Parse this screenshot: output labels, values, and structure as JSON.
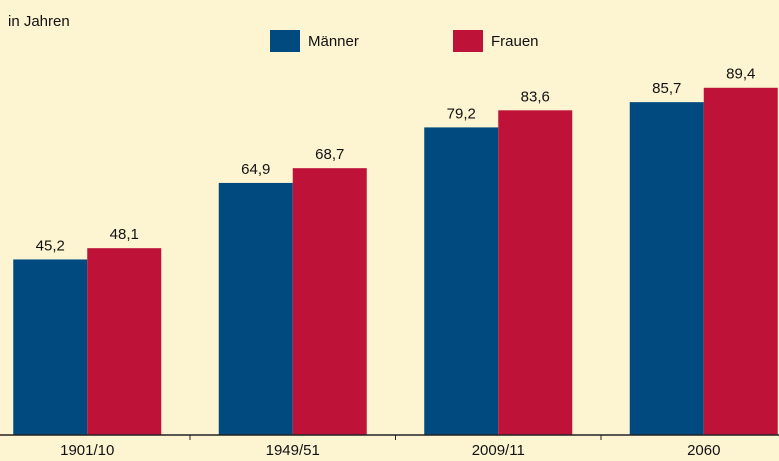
{
  "chart_data": {
    "type": "bar",
    "subtitle": "in Jahren",
    "categories": [
      "1901/10",
      "1949/51",
      "2009/11",
      "2060"
    ],
    "series": [
      {
        "name": "Männer",
        "color": "#004a80",
        "values": [
          45.2,
          64.9,
          79.2,
          85.7
        ],
        "value_labels": [
          "45,2",
          "64,9",
          "79,2",
          "85,7"
        ]
      },
      {
        "name": "Frauen",
        "color": "#be1238",
        "values": [
          48.1,
          68.7,
          83.6,
          89.4
        ],
        "value_labels": [
          "48,1",
          "68,7",
          "83,6",
          "89,4"
        ]
      }
    ],
    "ylim": [
      0,
      112
    ]
  }
}
